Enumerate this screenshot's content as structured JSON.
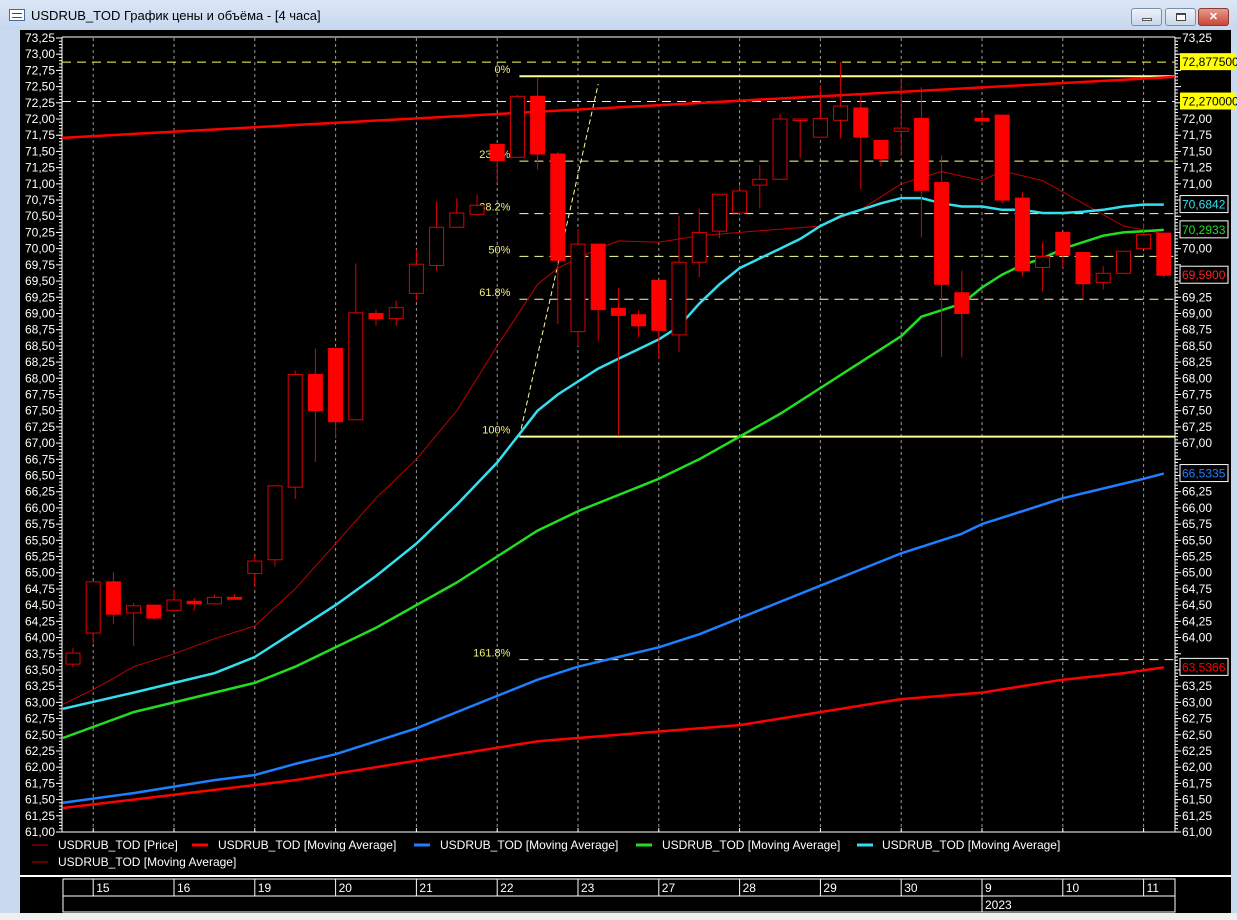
{
  "window": {
    "title": "USDRUB_TOD График цены и объёма - [4 часа]",
    "icon": "chart-window-icon",
    "buttons": {
      "minimize": "minimize-icon",
      "maximize": "maximize-icon",
      "close": "close-icon"
    }
  },
  "legend": [
    {
      "label": "USDRUB_TOD [Price]",
      "color": "#c00000",
      "weight": "thin"
    },
    {
      "label": "USDRUB_TOD [Moving Average]",
      "color": "#ff0000",
      "weight": "thick"
    },
    {
      "label": "USDRUB_TOD [Moving Average]",
      "color": "#1e7fff",
      "weight": "thick"
    },
    {
      "label": "USDRUB_TOD [Moving Average]",
      "color": "#22dd22",
      "weight": "thick"
    },
    {
      "label": "USDRUB_TOD [Moving Average]",
      "color": "#33e0f0",
      "weight": "thick"
    },
    {
      "label": "USDRUB_TOD [Moving Average]",
      "color": "#c00000",
      "weight": "thin"
    }
  ],
  "chart_data": {
    "type": "candlestick",
    "ylim": [
      61.0,
      73.25
    ],
    "y_tick_labels": [
      "61,00",
      "61,25",
      "61,50",
      "61,75",
      "62,00",
      "62,25",
      "62,50",
      "62,75",
      "63,00",
      "63,25",
      "63,50",
      "63,75",
      "64,00",
      "64,25",
      "64,50",
      "64,75",
      "65,00",
      "65,25",
      "65,50",
      "65,75",
      "66,00",
      "66,25",
      "66,50",
      "66,75",
      "67,00",
      "67,25",
      "67,50",
      "67,75",
      "68,00",
      "68,25",
      "68,50",
      "68,75",
      "69,00",
      "69,25",
      "69,50",
      "69,75",
      "70,00",
      "70,25",
      "70,50",
      "70,75",
      "71,00",
      "71,25",
      "71,50",
      "71,75",
      "72,00",
      "72,25",
      "72,50",
      "72,75",
      "73,00",
      "73,25"
    ],
    "x_date_labels": [
      {
        "bar": 1,
        "label": "15"
      },
      {
        "bar": 5,
        "label": "16"
      },
      {
        "bar": 9,
        "label": "19"
      },
      {
        "bar": 13,
        "label": "20"
      },
      {
        "bar": 17,
        "label": "21"
      },
      {
        "bar": 21,
        "label": "22"
      },
      {
        "bar": 25,
        "label": "23"
      },
      {
        "bar": 29,
        "label": "27"
      },
      {
        "bar": 33,
        "label": "28"
      },
      {
        "bar": 37,
        "label": "29"
      },
      {
        "bar": 41,
        "label": "30"
      },
      {
        "bar": 45,
        "label": "9"
      },
      {
        "bar": 49,
        "label": "10"
      },
      {
        "bar": 53,
        "label": "11"
      }
    ],
    "year_label": {
      "bar": 45,
      "label": "2023"
    },
    "grid": {
      "vertical": true,
      "horizontal": false
    },
    "candle_fields": [
      "open",
      "high",
      "low",
      "close"
    ],
    "candles": [
      [
        63.59,
        63.84,
        63.54,
        63.76
      ],
      [
        64.07,
        64.86,
        63.91,
        64.86
      ],
      [
        64.86,
        65.01,
        64.21,
        64.36
      ],
      [
        64.38,
        64.53,
        63.87,
        64.49
      ],
      [
        64.5,
        64.5,
        64.27,
        64.3
      ],
      [
        64.42,
        64.73,
        64.42,
        64.58
      ],
      [
        64.56,
        64.61,
        64.41,
        64.52
      ],
      [
        64.52,
        64.67,
        64.52,
        64.62
      ],
      [
        64.62,
        64.67,
        64.59,
        64.59
      ],
      [
        64.99,
        65.27,
        64.78,
        65.18
      ],
      [
        65.2,
        66.34,
        65.1,
        66.34
      ],
      [
        66.32,
        68.12,
        66.14,
        68.06
      ],
      [
        68.06,
        68.46,
        66.71,
        67.5
      ],
      [
        68.46,
        68.46,
        67.07,
        67.33
      ],
      [
        67.36,
        69.77,
        67.36,
        69.01
      ],
      [
        69.0,
        69.06,
        68.81,
        68.92
      ],
      [
        68.92,
        69.2,
        68.81,
        69.09
      ],
      [
        69.31,
        69.99,
        69.2,
        69.76
      ],
      [
        69.74,
        70.73,
        69.66,
        70.33
      ],
      [
        70.33,
        70.78,
        70.33,
        70.55
      ],
      [
        70.53,
        70.84,
        70.53,
        70.67
      ],
      [
        71.61,
        71.61,
        71.01,
        71.36
      ],
      [
        71.41,
        72.37,
        71.41,
        72.35
      ],
      [
        72.35,
        72.63,
        71.22,
        71.46
      ],
      [
        71.46,
        71.49,
        68.84,
        69.82
      ],
      [
        68.72,
        70.3,
        68.5,
        70.07
      ],
      [
        70.07,
        70.07,
        68.57,
        69.06
      ],
      [
        69.08,
        69.39,
        67.11,
        68.97
      ],
      [
        68.98,
        69.05,
        68.63,
        68.81
      ],
      [
        69.51,
        69.51,
        68.3,
        68.74
      ],
      [
        68.67,
        70.51,
        68.41,
        69.79
      ],
      [
        69.79,
        70.62,
        69.56,
        70.25
      ],
      [
        70.27,
        70.84,
        70.16,
        70.84
      ],
      [
        70.55,
        70.98,
        70.55,
        70.89
      ],
      [
        70.98,
        71.29,
        70.62,
        71.07
      ],
      [
        71.07,
        72.08,
        71.07,
        72.0
      ],
      [
        72.0,
        72.0,
        71.4,
        72.0
      ],
      [
        71.72,
        72.52,
        71.72,
        72.01
      ],
      [
        71.98,
        72.88,
        71.7,
        72.2
      ],
      [
        72.17,
        72.4,
        70.92,
        71.72
      ],
      [
        71.67,
        71.67,
        71.27,
        71.39
      ],
      [
        71.81,
        72.63,
        71.43,
        71.86
      ],
      [
        72.01,
        72.49,
        70.17,
        70.9
      ],
      [
        71.02,
        71.44,
        68.33,
        69.45
      ],
      [
        69.32,
        69.66,
        68.32,
        69.0
      ],
      [
        72.01,
        72.1,
        71.92,
        71.97
      ],
      [
        72.06,
        72.06,
        70.7,
        70.75
      ],
      [
        70.78,
        70.87,
        69.57,
        69.66
      ],
      [
        69.71,
        70.1,
        69.34,
        69.88
      ],
      [
        70.25,
        70.25,
        69.7,
        69.9
      ],
      [
        69.94,
        69.94,
        69.23,
        69.46
      ],
      [
        69.48,
        69.73,
        69.37,
        69.62
      ],
      [
        69.62,
        69.96,
        69.62,
        69.96
      ],
      [
        70.0,
        70.39,
        70.0,
        70.22
      ],
      [
        70.24,
        70.24,
        69.55,
        69.59
      ]
    ],
    "moving_averages": [
      {
        "color": "#c00000",
        "weight": "thin",
        "points": [
          [
            -0.5,
            62.97
          ],
          [
            1,
            63.2
          ],
          [
            2,
            63.37
          ],
          [
            3,
            63.55
          ],
          [
            5,
            63.75
          ],
          [
            7,
            63.98
          ],
          [
            9,
            64.18
          ],
          [
            11,
            64.75
          ],
          [
            13,
            65.45
          ],
          [
            15,
            66.15
          ],
          [
            17,
            66.75
          ],
          [
            19,
            67.5
          ],
          [
            21,
            68.5
          ],
          [
            23,
            69.45
          ],
          [
            24,
            69.7
          ],
          [
            25,
            69.85
          ],
          [
            26,
            70.0
          ],
          [
            27,
            70.12
          ],
          [
            29,
            70.1
          ],
          [
            31,
            70.2
          ],
          [
            33,
            70.25
          ],
          [
            35,
            70.3
          ],
          [
            37,
            70.35
          ],
          [
            39,
            70.6
          ],
          [
            41,
            71.0
          ],
          [
            43,
            71.19
          ],
          [
            44,
            71.12
          ],
          [
            45,
            71.05
          ],
          [
            46,
            71.2
          ],
          [
            48,
            71.05
          ],
          [
            50,
            70.7
          ],
          [
            52,
            70.35
          ],
          [
            54,
            70.23
          ]
        ]
      },
      {
        "color": "#ff0000",
        "weight": "thick",
        "label": "63,5366",
        "points": [
          [
            -0.5,
            61.37
          ],
          [
            3,
            61.5
          ],
          [
            7,
            61.65
          ],
          [
            11,
            61.8
          ],
          [
            15,
            62.0
          ],
          [
            19,
            62.2
          ],
          [
            21,
            62.3
          ],
          [
            23,
            62.4
          ],
          [
            25,
            62.45
          ],
          [
            29,
            62.55
          ],
          [
            33,
            62.65
          ],
          [
            37,
            62.85
          ],
          [
            41,
            63.05
          ],
          [
            45,
            63.15
          ],
          [
            49,
            63.35
          ],
          [
            52,
            63.45
          ],
          [
            54,
            63.54
          ]
        ]
      },
      {
        "color": "#1e7fff",
        "weight": "thick",
        "label": "66,5335",
        "points": [
          [
            -0.5,
            61.45
          ],
          [
            3,
            61.6
          ],
          [
            7,
            61.8
          ],
          [
            9,
            61.88
          ],
          [
            11,
            62.05
          ],
          [
            13,
            62.2
          ],
          [
            15,
            62.4
          ],
          [
            17,
            62.6
          ],
          [
            19,
            62.85
          ],
          [
            21,
            63.1
          ],
          [
            23,
            63.35
          ],
          [
            25,
            63.55
          ],
          [
            27,
            63.7
          ],
          [
            29,
            63.85
          ],
          [
            31,
            64.05
          ],
          [
            33,
            64.3
          ],
          [
            35,
            64.55
          ],
          [
            37,
            64.8
          ],
          [
            39,
            65.05
          ],
          [
            41,
            65.3
          ],
          [
            43,
            65.5
          ],
          [
            44,
            65.6
          ],
          [
            45,
            65.75
          ],
          [
            47,
            65.95
          ],
          [
            49,
            66.15
          ],
          [
            51,
            66.3
          ],
          [
            53,
            66.45
          ],
          [
            54,
            66.53
          ]
        ]
      },
      {
        "color": "#22dd22",
        "weight": "thick",
        "label": "70,2933",
        "points": [
          [
            -0.5,
            62.45
          ],
          [
            3,
            62.85
          ],
          [
            5,
            63.0
          ],
          [
            7,
            63.15
          ],
          [
            9,
            63.3
          ],
          [
            11,
            63.55
          ],
          [
            13,
            63.85
          ],
          [
            15,
            64.15
          ],
          [
            17,
            64.5
          ],
          [
            19,
            64.85
          ],
          [
            21,
            65.25
          ],
          [
            23,
            65.65
          ],
          [
            25,
            65.95
          ],
          [
            27,
            66.2
          ],
          [
            29,
            66.45
          ],
          [
            31,
            66.75
          ],
          [
            33,
            67.1
          ],
          [
            35,
            67.45
          ],
          [
            37,
            67.85
          ],
          [
            39,
            68.25
          ],
          [
            41,
            68.65
          ],
          [
            42,
            68.95
          ],
          [
            43,
            69.05
          ],
          [
            44,
            69.15
          ],
          [
            45,
            69.4
          ],
          [
            46,
            69.6
          ],
          [
            47,
            69.75
          ],
          [
            48,
            69.85
          ],
          [
            49,
            70.0
          ],
          [
            50,
            70.1
          ],
          [
            51,
            70.2
          ],
          [
            52,
            70.25
          ],
          [
            53,
            70.27
          ],
          [
            54,
            70.29
          ]
        ]
      },
      {
        "color": "#33e0f0",
        "weight": "thick",
        "label": "70,6842",
        "points": [
          [
            -0.5,
            62.9
          ],
          [
            3,
            63.15
          ],
          [
            5,
            63.3
          ],
          [
            7,
            63.45
          ],
          [
            9,
            63.7
          ],
          [
            11,
            64.1
          ],
          [
            13,
            64.5
          ],
          [
            15,
            64.95
          ],
          [
            17,
            65.45
          ],
          [
            19,
            66.05
          ],
          [
            21,
            66.7
          ],
          [
            22,
            67.1
          ],
          [
            23,
            67.5
          ],
          [
            24,
            67.75
          ],
          [
            25,
            67.95
          ],
          [
            26,
            68.15
          ],
          [
            27,
            68.3
          ],
          [
            28,
            68.45
          ],
          [
            29,
            68.6
          ],
          [
            30,
            68.8
          ],
          [
            31,
            69.15
          ],
          [
            32,
            69.45
          ],
          [
            33,
            69.7
          ],
          [
            34,
            69.85
          ],
          [
            35,
            70.0
          ],
          [
            36,
            70.15
          ],
          [
            37,
            70.35
          ],
          [
            38,
            70.5
          ],
          [
            39,
            70.6
          ],
          [
            40,
            70.7
          ],
          [
            41,
            70.78
          ],
          [
            42,
            70.78
          ],
          [
            43,
            70.7
          ],
          [
            44,
            70.65
          ],
          [
            45,
            70.65
          ],
          [
            46,
            70.6
          ],
          [
            47,
            70.6
          ],
          [
            48,
            70.55
          ],
          [
            49,
            70.55
          ],
          [
            50,
            70.57
          ],
          [
            51,
            70.6
          ],
          [
            52,
            70.65
          ],
          [
            53,
            70.68
          ],
          [
            54,
            70.68
          ]
        ]
      }
    ],
    "price_label": {
      "label": "69,5900",
      "color": "#ff2020"
    },
    "trendline": {
      "color": "#ff0000",
      "from": [
        -0.55,
        71.71
      ],
      "to": [
        54.55,
        72.65
      ]
    },
    "horizontal_levels": [
      {
        "value": 72.8775,
        "label": "72,877500",
        "color": "#ffff66",
        "style": "dashed"
      },
      {
        "value": 72.27,
        "label": "72,270000",
        "color": "#ffff66",
        "style": "dashed"
      }
    ],
    "fibonacci": {
      "color": "#ffff99",
      "start_bar": 22.1,
      "anchor_line": {
        "from": [
          22.1,
          67.1
        ],
        "to": [
          26.0,
          72.54
        ]
      },
      "levels": [
        {
          "label": "0%",
          "value": 72.66,
          "style": "solid"
        },
        {
          "label": "23.6%",
          "value": 71.35,
          "style": "dashed"
        },
        {
          "label": "38.2%",
          "value": 70.54,
          "style": "dashed"
        },
        {
          "label": "50%",
          "value": 69.88,
          "style": "dashed"
        },
        {
          "label": "61.8%",
          "value": 69.22,
          "style": "dashed"
        },
        {
          "label": "100%",
          "value": 67.1,
          "style": "solid"
        },
        {
          "label": "161.8%",
          "value": 63.66,
          "style": "dashed"
        }
      ]
    },
    "candle_colors": {
      "up": "#e00000",
      "down": "#ff0000"
    }
  }
}
